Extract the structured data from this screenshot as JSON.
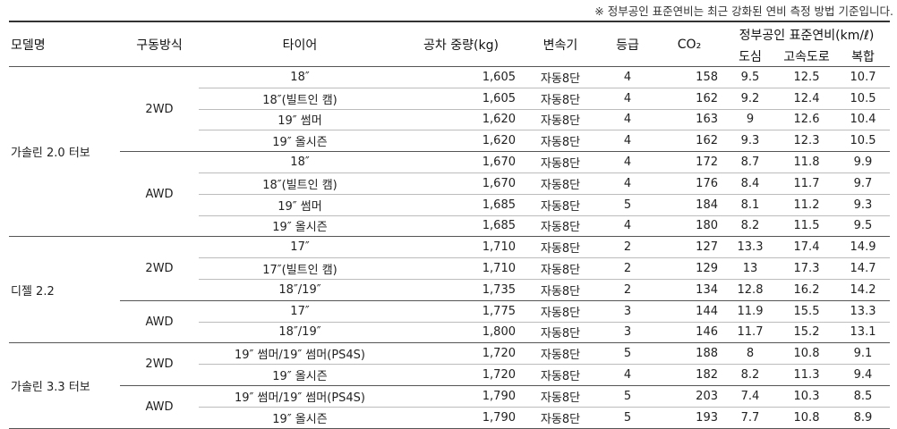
{
  "note": "※ 정부공인 표준연비는 최근 강화된 연비 측정 방법 기준입니다.",
  "headers": {
    "model": "모델명",
    "drive": "구동방식",
    "tire": "타이어",
    "weight": "공차 중량(kg)",
    "transmission": "변속기",
    "grade": "등급",
    "co2": "CO₂",
    "efficiency": "정부공인 표준연비(km/ℓ)",
    "city": "도심",
    "highway": "고속도로",
    "combined": "복합"
  },
  "groups": [
    {
      "model": "가솔린 2.0 터보",
      "drives": [
        {
          "drive": "2WD",
          "rows": [
            {
              "tire": "18″",
              "weight": "1,605",
              "transmission": "자동8단",
              "grade": "4",
              "co2": "158",
              "city": "9.5",
              "highway": "12.5",
              "combined": "10.7"
            },
            {
              "tire": "18″(빌트인 캠)",
              "weight": "1,605",
              "transmission": "자동8단",
              "grade": "4",
              "co2": "162",
              "city": "9.2",
              "highway": "12.4",
              "combined": "10.5"
            },
            {
              "tire": "19″ 썸머",
              "weight": "1,620",
              "transmission": "자동8단",
              "grade": "4",
              "co2": "163",
              "city": "9",
              "highway": "12.6",
              "combined": "10.4"
            },
            {
              "tire": "19″ 올시즌",
              "weight": "1,620",
              "transmission": "자동8단",
              "grade": "4",
              "co2": "162",
              "city": "9.3",
              "highway": "12.3",
              "combined": "10.5"
            }
          ]
        },
        {
          "drive": "AWD",
          "rows": [
            {
              "tire": "18″",
              "weight": "1,670",
              "transmission": "자동8단",
              "grade": "4",
              "co2": "172",
              "city": "8.7",
              "highway": "11.8",
              "combined": "9.9"
            },
            {
              "tire": "18″(빌트인 캠)",
              "weight": "1,670",
              "transmission": "자동8단",
              "grade": "4",
              "co2": "176",
              "city": "8.4",
              "highway": "11.7",
              "combined": "9.7"
            },
            {
              "tire": "19″ 썸머",
              "weight": "1,685",
              "transmission": "자동8단",
              "grade": "5",
              "co2": "184",
              "city": "8.1",
              "highway": "11.2",
              "combined": "9.3"
            },
            {
              "tire": "19″ 올시즌",
              "weight": "1,685",
              "transmission": "자동8단",
              "grade": "4",
              "co2": "180",
              "city": "8.2",
              "highway": "11.5",
              "combined": "9.5"
            }
          ]
        }
      ]
    },
    {
      "model": "디젤 2.2",
      "drives": [
        {
          "drive": "2WD",
          "rows": [
            {
              "tire": "17″",
              "weight": "1,710",
              "transmission": "자동8단",
              "grade": "2",
              "co2": "127",
              "city": "13.3",
              "highway": "17.4",
              "combined": "14.9"
            },
            {
              "tire": "17″(빌트인 캠)",
              "weight": "1,710",
              "transmission": "자동8단",
              "grade": "2",
              "co2": "129",
              "city": "13",
              "highway": "17.3",
              "combined": "14.7"
            },
            {
              "tire": "18″/19″",
              "weight": "1,735",
              "transmission": "자동8단",
              "grade": "2",
              "co2": "134",
              "city": "12.8",
              "highway": "16.2",
              "combined": "14.2"
            }
          ]
        },
        {
          "drive": "AWD",
          "rows": [
            {
              "tire": "17″",
              "weight": "1,775",
              "transmission": "자동8단",
              "grade": "3",
              "co2": "144",
              "city": "11.9",
              "highway": "15.5",
              "combined": "13.3"
            },
            {
              "tire": "18″/19″",
              "weight": "1,800",
              "transmission": "자동8단",
              "grade": "3",
              "co2": "146",
              "city": "11.7",
              "highway": "15.2",
              "combined": "13.1"
            }
          ]
        }
      ]
    },
    {
      "model": "가솔린 3.3 터보",
      "drives": [
        {
          "drive": "2WD",
          "rows": [
            {
              "tire": "19″ 썸머/19″ 썸머(PS4S)",
              "weight": "1,720",
              "transmission": "자동8단",
              "grade": "5",
              "co2": "188",
              "city": "8",
              "highway": "10.8",
              "combined": "9.1"
            },
            {
              "tire": "19″ 올시즌",
              "weight": "1,720",
              "transmission": "자동8단",
              "grade": "4",
              "co2": "182",
              "city": "8.2",
              "highway": "11.3",
              "combined": "9.4"
            }
          ]
        },
        {
          "drive": "AWD",
          "rows": [
            {
              "tire": "19″ 썸머/19″ 썸머(PS4S)",
              "weight": "1,790",
              "transmission": "자동8단",
              "grade": "5",
              "co2": "203",
              "city": "7.4",
              "highway": "10.3",
              "combined": "8.5"
            },
            {
              "tire": "19″ 올시즌",
              "weight": "1,790",
              "transmission": "자동8단",
              "grade": "5",
              "co2": "193",
              "city": "7.7",
              "highway": "10.8",
              "combined": "8.9"
            }
          ]
        }
      ]
    }
  ]
}
